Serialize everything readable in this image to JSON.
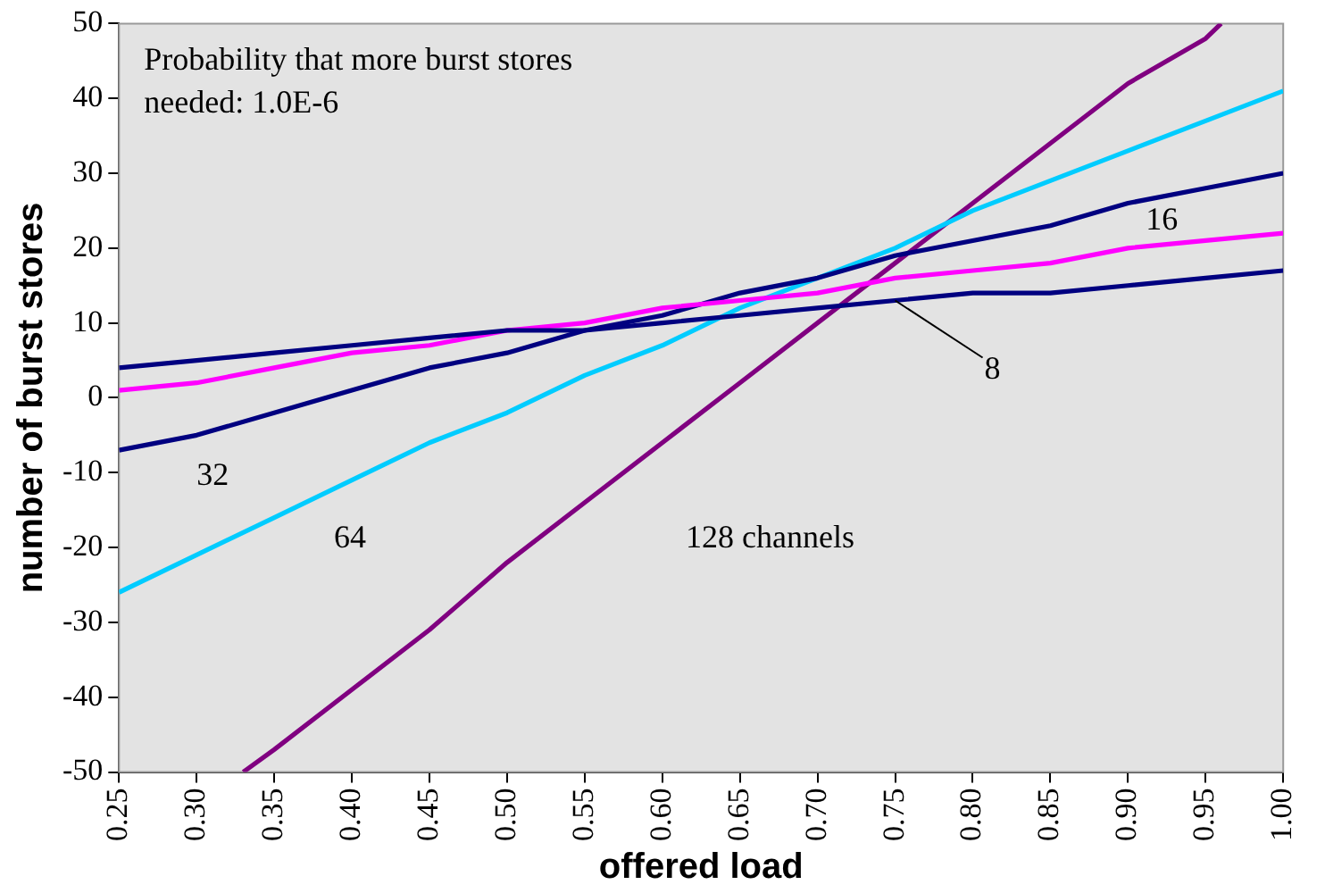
{
  "chart_data": {
    "type": "line",
    "xlabel": "offered load",
    "ylabel": "number of burst stores",
    "annotations": [
      "Probability that more burst stores needed: 1.0E-6"
    ],
    "x": [
      0.25,
      0.3,
      0.35,
      0.4,
      0.45,
      0.5,
      0.55,
      0.6,
      0.65,
      0.7,
      0.75,
      0.8,
      0.85,
      0.9,
      0.95,
      1.0
    ],
    "xlim": [
      0.25,
      1.0
    ],
    "xticks": [
      0.25,
      {
        "value": 0.3,
        "label": "0.30"
      },
      0.35,
      {
        "value": 0.4,
        "label": "0.40"
      },
      0.45,
      {
        "value": 0.5,
        "label": "0.50"
      },
      0.55,
      {
        "value": 0.6,
        "label": "0.60"
      },
      0.65,
      {
        "value": 0.7,
        "label": "0.70"
      },
      0.75,
      {
        "value": 0.8,
        "label": "0.80"
      },
      0.85,
      {
        "value": 0.9,
        "label": "0.90"
      },
      0.95,
      {
        "value": 1.0,
        "label": "1.00"
      }
    ],
    "ylim": [
      -50,
      50
    ],
    "yticks": [
      -50,
      -40,
      -30,
      -20,
      -10,
      0,
      10,
      20,
      30,
      40,
      50
    ],
    "grid": false,
    "legend": false,
    "marker": "none",
    "line_style": "solid",
    "series": [
      {
        "name": "8",
        "color": "#000080",
        "values": [
          4,
          5,
          6,
          7,
          8,
          9,
          9,
          10,
          11,
          12,
          13,
          14,
          14,
          15,
          16,
          17
        ]
      },
      {
        "name": "16",
        "color": "#ff00ff",
        "values": [
          1,
          2,
          4,
          6,
          7,
          9,
          10,
          12,
          13,
          14,
          16,
          17,
          18,
          20,
          21,
          22
        ]
      },
      {
        "name": "32",
        "color": "#000080",
        "values": [
          -7,
          -5,
          -2,
          1,
          4,
          6,
          9,
          11,
          14,
          16,
          19,
          21,
          23,
          26,
          28,
          30
        ]
      },
      {
        "name": "64",
        "color": "#00ccff",
        "values": [
          -26,
          -21,
          -16,
          -11,
          -6,
          -2,
          3,
          7,
          12,
          16,
          20,
          25,
          29,
          33,
          37,
          41
        ]
      },
      {
        "name": "128 channels",
        "color": "#800080",
        "x": [
          0.33,
          0.35,
          0.4,
          0.45,
          0.5,
          0.55,
          0.6,
          0.65,
          0.7,
          0.75,
          0.8,
          0.85,
          0.9,
          0.95,
          0.96
        ],
        "values": [
          -50,
          -47,
          -39,
          -31,
          -22,
          -14,
          -6,
          2,
          10,
          18,
          26,
          34,
          42,
          48,
          50
        ]
      }
    ]
  }
}
